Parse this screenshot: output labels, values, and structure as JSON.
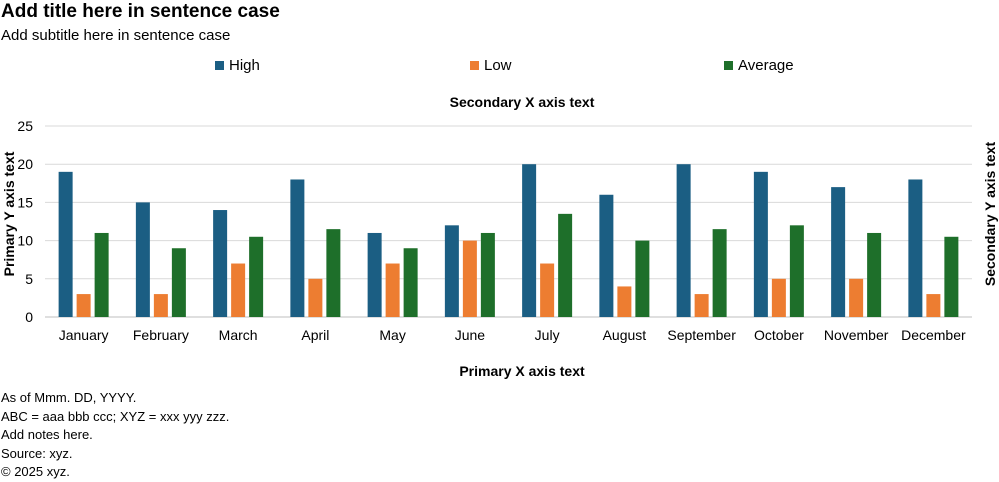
{
  "title": "Add title here in sentence case",
  "subtitle": "Add subtitle here in sentence case",
  "notes": [
    "As of Mmm. DD, YYYY.",
    "ABC = aaa bbb ccc; XYZ = xxx yyy zzz.",
    "Add notes here.",
    "Source: xyz.",
    "© 2025 xyz."
  ],
  "chart_data": {
    "type": "bar",
    "title": "Add title here in sentence case",
    "subtitle": "Add subtitle here in sentence case",
    "xlabel": "Primary X axis text",
    "x2label": "Secondary X axis text",
    "ylabel": "Primary Y axis text",
    "y2label": "Secondary Y axis text",
    "ylim": [
      0,
      25
    ],
    "yticks": [
      0,
      5,
      10,
      15,
      20,
      25
    ],
    "grid": true,
    "legend_position": "top",
    "categories": [
      "January",
      "February",
      "March",
      "April",
      "May",
      "June",
      "July",
      "August",
      "September",
      "October",
      "November",
      "December"
    ],
    "series": [
      {
        "name": "High",
        "color": "#1b5e83",
        "values": [
          19,
          15,
          14,
          18,
          11,
          12,
          20,
          16,
          20,
          19,
          17,
          18
        ]
      },
      {
        "name": "Low",
        "color": "#ed7d31",
        "values": [
          3,
          3,
          7,
          5,
          7,
          10,
          7,
          4,
          3,
          5,
          5,
          3
        ]
      },
      {
        "name": "Average",
        "color": "#1e6f2a",
        "values": [
          11,
          9,
          10.5,
          11.5,
          9,
          11,
          13.5,
          10,
          11.5,
          12,
          11,
          10.5
        ]
      }
    ]
  }
}
